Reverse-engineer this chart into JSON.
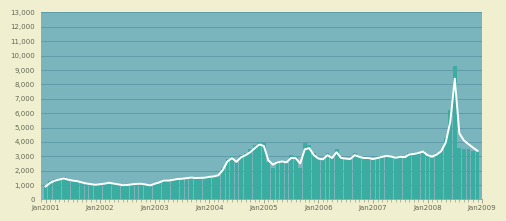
{
  "bar_color": "#3aaca0",
  "line_color": "#ffffff",
  "background_plot": "#7ab5be",
  "background_fig": "#f0f0d0",
  "grid_color": "#5590a0",
  "axis_label_color": "#666655",
  "ylim": [
    0,
    13000
  ],
  "yticks": [
    0,
    1000,
    2000,
    3000,
    4000,
    5000,
    6000,
    7000,
    8000,
    9000,
    10000,
    11000,
    12000,
    13000
  ],
  "ytick_labels": [
    "0",
    "1,000",
    "2,000",
    "3,000",
    "4,000",
    "5,000",
    "6,000",
    "7,000",
    "8,000",
    "9,000",
    "10,000",
    "11,000",
    "12,000",
    "13,000"
  ],
  "bar_values": [
    900,
    1300,
    1400,
    1450,
    1550,
    1350,
    1300,
    1300,
    1150,
    1100,
    1050,
    1000,
    1100,
    1150,
    1200,
    1050,
    1000,
    950,
    1000,
    1050,
    1100,
    1100,
    1000,
    950,
    1100,
    1200,
    1400,
    1300,
    1350,
    1450,
    1450,
    1500,
    1550,
    1500,
    1500,
    1500,
    1600,
    1600,
    1700,
    2200,
    2800,
    3000,
    2500,
    3100,
    3200,
    3500,
    3800,
    4000,
    3900,
    2600,
    2200,
    2700,
    2600,
    2500,
    3100,
    3000,
    2200,
    3900,
    3800,
    3200,
    2900,
    2800,
    3200,
    2900,
    3500,
    2900,
    2800,
    2800,
    3200,
    3000,
    2900,
    2900,
    2800,
    2900,
    3000,
    3100,
    3000,
    2900,
    3000,
    2900,
    3200,
    3200,
    3300,
    3400,
    3000,
    2900,
    3200,
    3400,
    4300,
    6200,
    9300,
    3600,
    3500,
    3500,
    3400,
    3300
  ],
  "line_values": [
    900,
    1150,
    1300,
    1380,
    1460,
    1370,
    1310,
    1270,
    1180,
    1110,
    1060,
    1020,
    1060,
    1100,
    1160,
    1100,
    1050,
    990,
    1005,
    1050,
    1080,
    1090,
    1040,
    975,
    1090,
    1180,
    1320,
    1310,
    1360,
    1420,
    1440,
    1480,
    1520,
    1490,
    1500,
    1510,
    1570,
    1600,
    1680,
    2050,
    2650,
    2870,
    2620,
    2930,
    3080,
    3280,
    3560,
    3820,
    3720,
    2720,
    2420,
    2580,
    2640,
    2580,
    2880,
    2870,
    2500,
    3480,
    3570,
    3080,
    2840,
    2790,
    3080,
    2880,
    3280,
    2880,
    2840,
    2810,
    3080,
    2960,
    2880,
    2880,
    2810,
    2880,
    2960,
    3030,
    2980,
    2900,
    2960,
    2940,
    3130,
    3160,
    3230,
    3330,
    3080,
    2980,
    3120,
    3350,
    3950,
    5400,
    8400,
    4600,
    4100,
    3850,
    3600,
    3380
  ],
  "xtick_positions": [
    0,
    12,
    24,
    36,
    48,
    60,
    72,
    84,
    96
  ],
  "xtick_labels": [
    "Jan2001",
    "Jan2002",
    "Jan2003",
    "Jan2004",
    "Jan2005",
    "Jan2006",
    "Jan2007",
    "Jan2008",
    "Jan2009"
  ]
}
